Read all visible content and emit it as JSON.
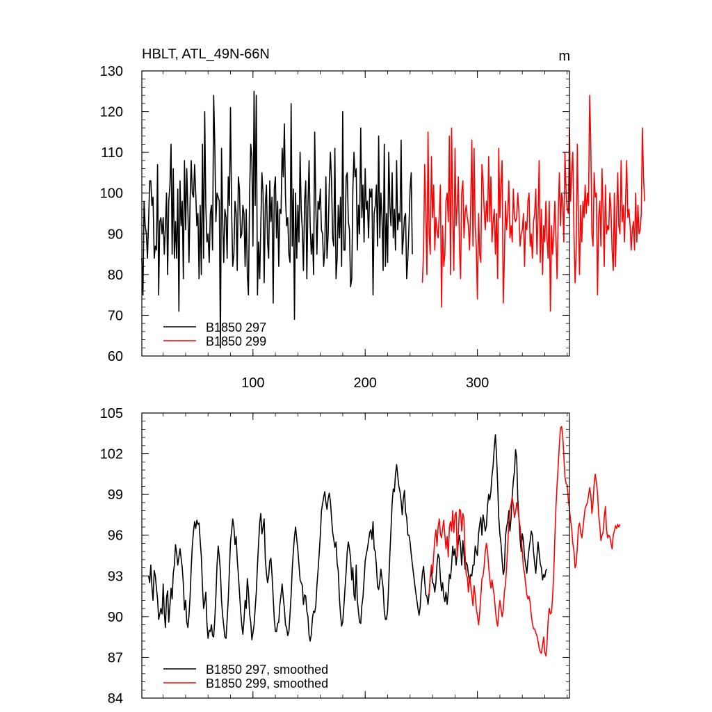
{
  "chart_data": [
    {
      "type": "line",
      "title": "HBLT, ATL_49N-66N",
      "units": "m",
      "xlabel": "",
      "ylabel": "",
      "xlim": [
        1,
        382
      ],
      "ylim": [
        60,
        130
      ],
      "xticks": [
        100,
        200,
        300
      ],
      "yticks": [
        60,
        70,
        80,
        90,
        100,
        110,
        120,
        130
      ],
      "legend_position": "bottom-left",
      "series": [
        {
          "name": "B1850 297",
          "color": "#000000",
          "x_start": 1,
          "values": [
            84,
            75,
            98,
            92,
            90,
            84,
            93,
            103,
            103,
            97,
            99,
            84,
            87,
            86,
            107,
            75,
            93,
            94,
            90,
            94,
            85,
            92,
            100,
            80,
            98,
            102,
            112,
            85,
            106,
            84,
            93,
            84,
            101,
            71,
            103,
            92,
            98,
            79,
            108,
            91,
            106,
            96,
            83,
            98,
            108,
            100,
            99,
            107,
            100,
            92,
            95,
            79,
            97,
            80,
            112,
            84,
            120,
            97,
            88,
            90,
            83,
            95,
            97,
            86,
            124,
            112,
            93,
            100,
            99,
            98,
            62,
            111,
            94,
            83,
            96,
            94,
            84,
            104,
            97,
            121,
            96,
            82,
            85,
            98,
            95,
            81,
            104,
            101,
            89,
            90,
            97,
            95,
            82,
            96,
            80,
            75,
            100,
            112,
            109,
            87,
            125,
            97,
            124,
            75,
            88,
            79,
            92,
            105,
            100,
            78,
            97,
            102,
            88,
            84,
            103,
            93,
            99,
            73,
            101,
            104,
            89,
            98,
            82,
            96,
            95,
            111,
            104,
            117,
            99,
            92,
            94,
            85,
            83,
            122,
            87,
            101,
            69,
            100,
            84,
            97,
            88,
            110,
            96,
            91,
            81,
            98,
            103,
            79,
            97,
            108,
            92,
            85,
            90,
            80,
            115,
            97,
            85,
            98,
            96,
            101,
            91,
            90,
            82,
            86,
            104,
            84,
            90,
            102,
            110,
            103,
            89,
            87,
            111,
            79,
            84,
            97,
            89,
            99,
            82,
            120,
            86,
            86,
            104,
            105,
            93,
            91,
            77,
            79,
            101,
            110,
            104,
            106,
            86,
            97,
            90,
            116,
            94,
            102,
            88,
            106,
            96,
            98,
            89,
            101,
            99,
            101,
            75,
            95,
            97,
            102,
            87,
            114,
            89,
            100,
            94,
            81,
            112,
            82,
            95,
            83,
            110,
            97,
            92,
            105,
            89,
            96,
            86,
            108,
            91,
            95,
            93,
            113,
            85,
            89,
            94,
            95,
            79,
            84,
            92,
            101,
            105,
            85
          ]
        },
        {
          "name": "B1850 299",
          "color": "#ff0000",
          "x_start": 251,
          "values": [
            78,
            86,
            107,
            96,
            80,
            115,
            90,
            85,
            109,
            94,
            102,
            86,
            94,
            91,
            89,
            95,
            102,
            72,
            92,
            82,
            85,
            98,
            100,
            93,
            114,
            80,
            116,
            95,
            81,
            111,
            92,
            97,
            104,
            87,
            79,
            100,
            103,
            89,
            95,
            97,
            94,
            92,
            86,
            97,
            113,
            87,
            111,
            92,
            87,
            74,
            95,
            85,
            83,
            107,
            103,
            96,
            91,
            98,
            93,
            109,
            93,
            104,
            88,
            93,
            96,
            85,
            95,
            79,
            111,
            94,
            102,
            108,
            73,
            84,
            98,
            91,
            95,
            103,
            89,
            92,
            88,
            101,
            94,
            93,
            94,
            100,
            95,
            87,
            90,
            91,
            95,
            82,
            93,
            91,
            98,
            100,
            87,
            90,
            84,
            93,
            95,
            101,
            85,
            94,
            108,
            83,
            96,
            80,
            92,
            88,
            98,
            89,
            84,
            98,
            71,
            92,
            85,
            90,
            98,
            89,
            79,
            95,
            105,
            92,
            100,
            98,
            88,
            110,
            100,
            96,
            95,
            116,
            98,
            105,
            110,
            90,
            78,
            86,
            112,
            93,
            80,
            97,
            88,
            98,
            94,
            102,
            95,
            100,
            97,
            124,
            112,
            90,
            87,
            105,
            99,
            100,
            75,
            94,
            98,
            87,
            106,
            95,
            82,
            102,
            90,
            92,
            91,
            100,
            96,
            86,
            81,
            100,
            82,
            94,
            105,
            92,
            90,
            108,
            93,
            97,
            88,
            98,
            108,
            94,
            96,
            92,
            86,
            91,
            93,
            86,
            100,
            88,
            97,
            90,
            91,
            95,
            116,
            104,
            98
          ]
        }
      ]
    },
    {
      "type": "line",
      "title": "",
      "xlabel": "",
      "ylabel": "",
      "xlim": [
        1,
        382
      ],
      "ylim": [
        84,
        105
      ],
      "xticks": [
        100,
        200,
        300
      ],
      "yticks": [
        84,
        87,
        90,
        93,
        96,
        99,
        102,
        105
      ],
      "legend_position": "bottom-left",
      "series": [
        {
          "name": "B1850 297, smoothed",
          "color": "#000000",
          "x_start": 7,
          "values": [
            93.0,
            92.5,
            93.8,
            92.2,
            91.2,
            93.4,
            93.0,
            92.1,
            91.3,
            89.8,
            90.2,
            90.6,
            90.2,
            92.4,
            90.3,
            89.2,
            91.4,
            91.9,
            89.6,
            90.8,
            92.1,
            91.3,
            93.2,
            93.8,
            95.3,
            94.7,
            93.8,
            94.4,
            95.0,
            94.3,
            93.6,
            92.4,
            90.5,
            91.2,
            89.6,
            89.2,
            90.1,
            91.5,
            93.6,
            95.2,
            96.3,
            97.0,
            96.5,
            97.1,
            96.8,
            96.9,
            95.6,
            94.4,
            92.2,
            90.6,
            91.1,
            91.8,
            89.5,
            88.4,
            89.0,
            88.9,
            89.4,
            88.6,
            88.5,
            89.8,
            91.5,
            93.8,
            95.2,
            94.4,
            93.3,
            91.2,
            90.1,
            89.3,
            88.5,
            88.4,
            89.8,
            91.3,
            93.4,
            95.5,
            96.3,
            97.2,
            96.6,
            95.3,
            95.9,
            94.2,
            93.1,
            91.8,
            90.5,
            89.4,
            88.7,
            89.7,
            91.2,
            90.6,
            92.8,
            91.9,
            90.2,
            89.6,
            88.3,
            88.8,
            89.4,
            90.6,
            91.8,
            93.8,
            95.4,
            96.9,
            97.6,
            96.1,
            96.6,
            97.2,
            94.2,
            93.2,
            92.5,
            93.0,
            94.1,
            94.3,
            93.1,
            91.4,
            89.8,
            88.9,
            88.9,
            89.5,
            89.6,
            90.9,
            91.6,
            92.4,
            91.4,
            90.6,
            89.4,
            89.2,
            88.6,
            88.9,
            90.2,
            91.6,
            93.5,
            94.8,
            95.9,
            96.6,
            95.7,
            94.9,
            93.8,
            92.7,
            92.5,
            92.3,
            90.9,
            91.6,
            91.5,
            90.4,
            90.0,
            88.6,
            88.2,
            88.7,
            89.9,
            90.4,
            90.3,
            90.8,
            92.3,
            93.4,
            94.6,
            96.0,
            97.8,
            98.3,
            98.8,
            99.2,
            98.4,
            97.9,
            98.7,
            99.1,
            98.5,
            97.3,
            96.2,
            95.7,
            95.1,
            95.5,
            93.9,
            93.4,
            91.4,
            90.2,
            89.3,
            89.6,
            90.8,
            92.1,
            93.3,
            94.8,
            95.5,
            95.0,
            94.3,
            92.7,
            93.6,
            91.6,
            91.2,
            93.8,
            91.2,
            90.4,
            89.6,
            89.5,
            90.8,
            91.4,
            92.7,
            94.1,
            94.6,
            95.0,
            95.6,
            96.2,
            96.4,
            95.7,
            97.0,
            95.0,
            94.8,
            93.7,
            92.2,
            92.0,
            92.6,
            93.5,
            92.8,
            92.1,
            90.4,
            89.8,
            89.8,
            90.5,
            92.5,
            94.6,
            96.4,
            98.4,
            99.4,
            99.2,
            100.5,
            101.2,
            100.4,
            99.6,
            99.2,
            98.5,
            97.5,
            98.7,
            99.3,
            97.7,
            97.3,
            96.0,
            96.0,
            95.5,
            94.6,
            93.9,
            93.2,
            92.5,
            91.8,
            91.2,
            90.6,
            90.1,
            90.7,
            92.2,
            93.2,
            93.7,
            92.6,
            91.6,
            91.5,
            90.9,
            91.7,
            92.9,
            93.4,
            92.5,
            92.4,
            91.8,
            92.5,
            93.9,
            94.6,
            94.3,
            92.8,
            91.9,
            92.5,
            91.5,
            91.1,
            91.8,
            90.9,
            91.8,
            93.1,
            92.8,
            93.8,
            95.2,
            94.5,
            95.0,
            93.8,
            94.7,
            95.5,
            96.0,
            95.2,
            93.8,
            95.6,
            94.6,
            93.5,
            94.0,
            93.8,
            93.1,
            92.5,
            93.1,
            93.0,
            93.8,
            93.8,
            95.2,
            94.8,
            94.5,
            96.1,
            96.8,
            97.3,
            96.0,
            97.5,
            97.0,
            96.3,
            96.7,
            98.2,
            99.0,
            98.6,
            99.2,
            100.4,
            101.1,
            102.5,
            103.4,
            101.9,
            99.8,
            97.3,
            96.1,
            95.4,
            94.2,
            93.1,
            93.5,
            95.9,
            96.6,
            97.0,
            97.8,
            96.3,
            97.3,
            98.9,
            100.0,
            100.7,
            102.3,
            101.7,
            98.7,
            97.2,
            95.7,
            94.8,
            96.1,
            95.6,
            94.4,
            93.8,
            93.2,
            94.2,
            95.0,
            95.6,
            96.3,
            96.0,
            94.8,
            93.9,
            93.2,
            94.4,
            95.5,
            94.7,
            93.9,
            93.6,
            92.7,
            93.1,
            92.9,
            93.4,
            93.5
          ]
        },
        {
          "name": "B1850 299, smoothed",
          "color": "#ff0000",
          "x_start": 256,
          "values": [
            91.6,
            91.7,
            92.9,
            93.8,
            93.2,
            94.5,
            95.7,
            96.4,
            95.2,
            96.6,
            97.2,
            96.1,
            95.8,
            96.5,
            97.1,
            96.0,
            95.0,
            95.9,
            94.4,
            96.6,
            97.0,
            96.3,
            97.8,
            96.2,
            97.5,
            97.7,
            94.4,
            96.2,
            97.9,
            97.8,
            96.3,
            97.6,
            97.2,
            94.5,
            93.1,
            92.9,
            91.8,
            93.0,
            92.3,
            91.6,
            90.8,
            92.3,
            91.6,
            90.6,
            90.1,
            89.4,
            90.3,
            91.5,
            92.8,
            93.0,
            93.7,
            94.8,
            95.4,
            94.8,
            93.7,
            92.8,
            92.1,
            92.7,
            92.1,
            91.5,
            90.5,
            89.7,
            89.3,
            90.4,
            91.2,
            90.6,
            90.0,
            90.5,
            91.8,
            92.4,
            93.6,
            95.2,
            96.9,
            97.9,
            98.3,
            98.8,
            98.2,
            97.3,
            97.7,
            98.4,
            98.0,
            97.2,
            96.6,
            95.7,
            94.8,
            93.6,
            93.2,
            92.4,
            91.6,
            91.3,
            91.5,
            91.0,
            90.1,
            89.5,
            89.1,
            89.1,
            88.8,
            88.6,
            88.2,
            87.7,
            87.4,
            87.3,
            87.9,
            88.5,
            87.4,
            87.1,
            88.0,
            89.7,
            90.6,
            90.2,
            90.3,
            91.5,
            93.2,
            95.8,
            98.1,
            99.7,
            101.2,
            102.7,
            103.9,
            104.0,
            103.3,
            101.9,
            100.3,
            99.8,
            99.7,
            98.6,
            97.9,
            97.1,
            96.5,
            95.4,
            94.8,
            93.6,
            93.9,
            95.1,
            96.6,
            96.9,
            96.2,
            95.8,
            96.5,
            97.3,
            98.0,
            98.2,
            98.4,
            98.9,
            99.5,
            99.0,
            97.6,
            98.4,
            99.8,
            100.5,
            99.9,
            99.1,
            97.5,
            96.7,
            95.6,
            96.0,
            96.2,
            97.3,
            98.1,
            96.4,
            95.8,
            96.0,
            95.9,
            95.4,
            95.0,
            96.0,
            96.3,
            96.7,
            96.5,
            96.8,
            96.6,
            96.8
          ]
        }
      ]
    }
  ]
}
